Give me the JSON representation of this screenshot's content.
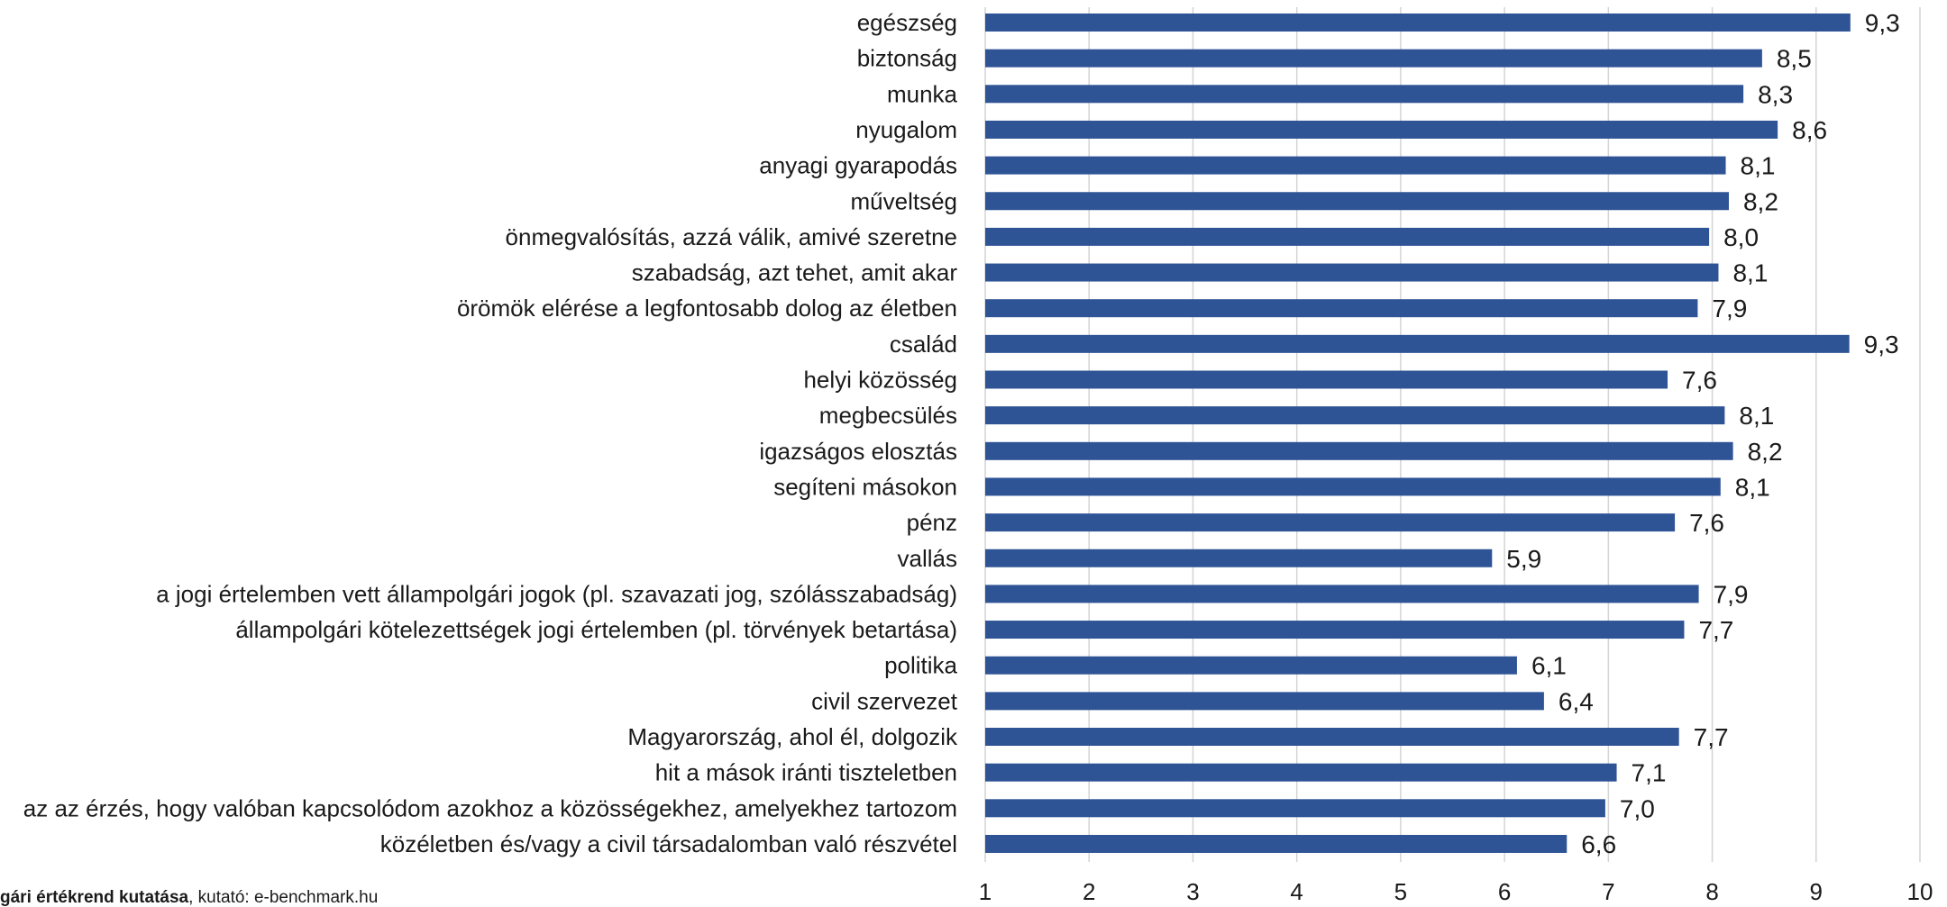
{
  "chart_data": {
    "type": "bar",
    "orientation": "horizontal",
    "categories": [
      "egészség",
      "biztonság",
      "munka",
      "nyugalom",
      "anyagi gyarapodás",
      "műveltség",
      "önmegvalósítás, azzá válik, amivé szeretne",
      "szabadság, azt tehet, amit akar",
      "örömök elérése a legfontosabb dolog az életben",
      "család",
      "helyi közösség",
      "megbecsülés",
      "igazságos elosztás",
      "segíteni másokon",
      "pénz",
      "vallás",
      "a jogi értelemben vett állampolgári jogok (pl. szavazati jog, szólásszabadság)",
      "állampolgári kötelezettségek jogi értelemben (pl. törvények betartása)",
      "politika",
      "civil szervezet",
      "Magyarország, ahol él, dolgozik",
      "hit a mások iránti tiszteletben",
      "az az érzés, hogy valóban kapcsolódom azokhoz a közösségekhez, amelyekhez tartozom",
      "közéletben és/vagy a civil társadalomban való részvétel"
    ],
    "values": [
      9.33,
      8.48,
      8.3,
      8.63,
      8.13,
      8.16,
      7.97,
      8.06,
      7.86,
      9.32,
      7.57,
      8.12,
      8.2,
      8.08,
      7.64,
      5.88,
      7.87,
      7.73,
      6.12,
      6.38,
      7.68,
      7.08,
      6.97,
      6.6
    ],
    "value_labels": [
      "9,3",
      "8,5",
      "8,3",
      "8,6",
      "8,1",
      "8,2",
      "8,0",
      "8,1",
      "7,9",
      "9,3",
      "7,6",
      "8,1",
      "8,2",
      "8,1",
      "7,6",
      "5,9",
      "7,9",
      "7,7",
      "6,1",
      "6,4",
      "7,7",
      "7,1",
      "7,0",
      "6,6"
    ],
    "xlim": [
      1,
      10
    ],
    "x_ticks": [
      "1",
      "2",
      "3",
      "4",
      "5",
      "6",
      "7",
      "8",
      "9",
      "10"
    ],
    "title": "",
    "xlabel": "",
    "ylabel": "",
    "grid": "vertical",
    "bar_color": "#2f5496"
  },
  "footnote": {
    "bold": "gári értékrend kutatása",
    "rest": ", kutató: e-benchmark.hu"
  }
}
